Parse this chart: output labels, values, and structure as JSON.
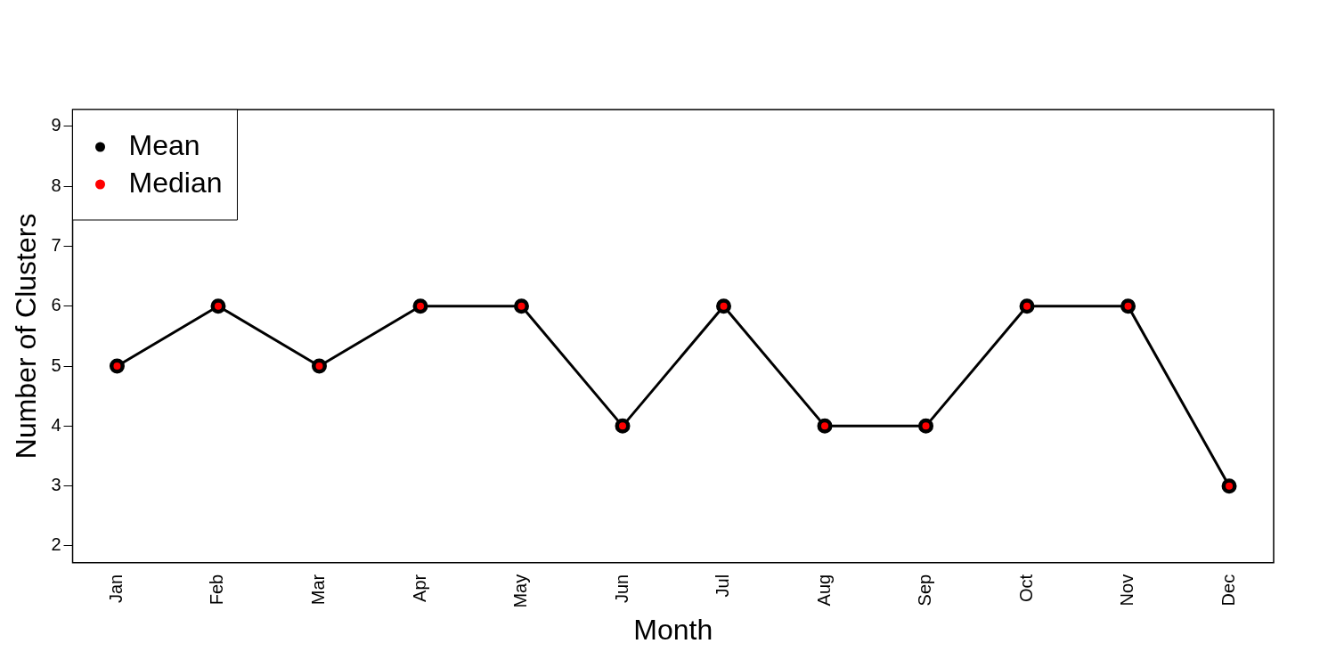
{
  "chart_data": {
    "type": "line",
    "xlabel": "Month",
    "ylabel": "Number of Clusters",
    "categories": [
      "Jan",
      "Feb",
      "Mar",
      "Apr",
      "May",
      "Jun",
      "Jul",
      "Aug",
      "Sep",
      "Oct",
      "Nov",
      "Dec"
    ],
    "series": [
      {
        "name": "Mean",
        "color": "#000000",
        "values": [
          5,
          6,
          5,
          6,
          6,
          4,
          6,
          4,
          4,
          6,
          6,
          3
        ]
      },
      {
        "name": "Median",
        "type": "scatter",
        "color": "#ff0000",
        "values": [
          5,
          6,
          5,
          6,
          6,
          4,
          6,
          4,
          4,
          6,
          6,
          3
        ]
      }
    ],
    "ylim": [
      1.72,
      9.28
    ],
    "yticks": [
      2,
      3,
      4,
      5,
      6,
      7,
      8,
      9
    ],
    "grid": false,
    "legend": "top left",
    "marker": "circle",
    "line_style": "solid"
  }
}
